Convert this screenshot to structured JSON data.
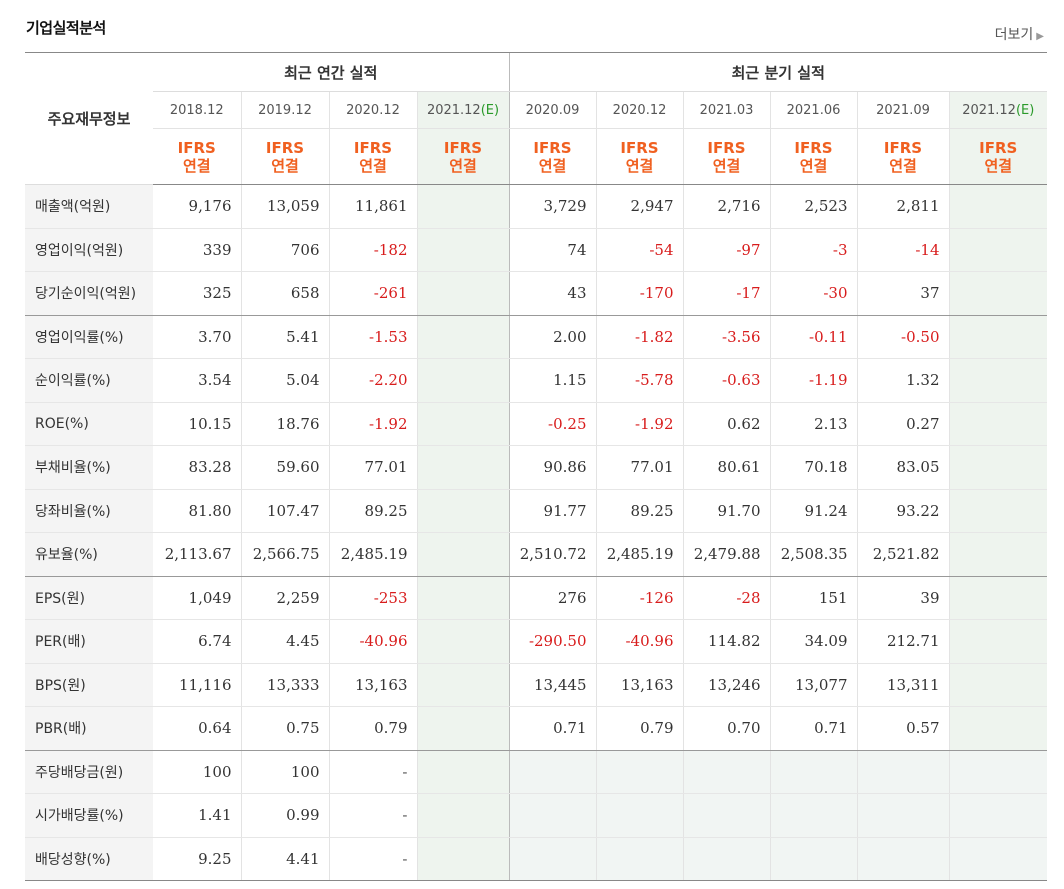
{
  "title": "기업실적분석",
  "more_label": "더보기",
  "header": {
    "corner_label": "주요재무정보",
    "annual_label": "최근 연간 실적",
    "quarter_label": "최근 분기 실적",
    "annual_periods": [
      "2018.12",
      "2019.12",
      "2020.12",
      "2021.12"
    ],
    "annual_estimate_suffix": "(E)",
    "quarter_periods": [
      "2020.09",
      "2020.12",
      "2021.03",
      "2021.06",
      "2021.09",
      "2021.12"
    ],
    "quarter_estimate_suffix": "(E)",
    "ifrs_line1": "IFRS",
    "ifrs_line2": "연결"
  },
  "rows": [
    {
      "label": "매출액(억원)",
      "annual": [
        "9,176",
        "13,059",
        "11,861",
        ""
      ],
      "quarter": [
        "3,729",
        "2,947",
        "2,716",
        "2,523",
        "2,811",
        ""
      ]
    },
    {
      "label": "영업이익(억원)",
      "annual": [
        "339",
        "706",
        "-182",
        ""
      ],
      "quarter": [
        "74",
        "-54",
        "-97",
        "-3",
        "-14",
        ""
      ]
    },
    {
      "label": "당기순이익(억원)",
      "annual": [
        "325",
        "658",
        "-261",
        ""
      ],
      "quarter": [
        "43",
        "-170",
        "-17",
        "-30",
        "37",
        ""
      ]
    },
    {
      "label": "영업이익률(%)",
      "annual": [
        "3.70",
        "5.41",
        "-1.53",
        ""
      ],
      "quarter": [
        "2.00",
        "-1.82",
        "-3.56",
        "-0.11",
        "-0.50",
        ""
      ]
    },
    {
      "label": "순이익률(%)",
      "annual": [
        "3.54",
        "5.04",
        "-2.20",
        ""
      ],
      "quarter": [
        "1.15",
        "-5.78",
        "-0.63",
        "-1.19",
        "1.32",
        ""
      ]
    },
    {
      "label": "ROE(%)",
      "annual": [
        "10.15",
        "18.76",
        "-1.92",
        ""
      ],
      "quarter": [
        "-0.25",
        "-1.92",
        "0.62",
        "2.13",
        "0.27",
        ""
      ]
    },
    {
      "label": "부채비율(%)",
      "annual": [
        "83.28",
        "59.60",
        "77.01",
        ""
      ],
      "quarter": [
        "90.86",
        "77.01",
        "80.61",
        "70.18",
        "83.05",
        ""
      ]
    },
    {
      "label": "당좌비율(%)",
      "annual": [
        "81.80",
        "107.47",
        "89.25",
        ""
      ],
      "quarter": [
        "91.77",
        "89.25",
        "91.70",
        "91.24",
        "93.22",
        ""
      ]
    },
    {
      "label": "유보율(%)",
      "annual": [
        "2,113.67",
        "2,566.75",
        "2,485.19",
        ""
      ],
      "quarter": [
        "2,510.72",
        "2,485.19",
        "2,479.88",
        "2,508.35",
        "2,521.82",
        ""
      ]
    },
    {
      "label": "EPS(원)",
      "annual": [
        "1,049",
        "2,259",
        "-253",
        ""
      ],
      "quarter": [
        "276",
        "-126",
        "-28",
        "151",
        "39",
        ""
      ]
    },
    {
      "label": "PER(배)",
      "annual": [
        "6.74",
        "4.45",
        "-40.96",
        ""
      ],
      "quarter": [
        "-290.50",
        "-40.96",
        "114.82",
        "34.09",
        "212.71",
        ""
      ]
    },
    {
      "label": "BPS(원)",
      "annual": [
        "11,116",
        "13,333",
        "13,163",
        ""
      ],
      "quarter": [
        "13,445",
        "13,163",
        "13,246",
        "13,077",
        "13,311",
        ""
      ]
    },
    {
      "label": "PBR(배)",
      "annual": [
        "0.64",
        "0.75",
        "0.79",
        ""
      ],
      "quarter": [
        "0.71",
        "0.79",
        "0.70",
        "0.71",
        "0.57",
        ""
      ]
    },
    {
      "label": "주당배당금(원)",
      "annual": [
        "100",
        "100",
        "-",
        ""
      ],
      "quarter": [
        "",
        "",
        "",
        "",
        "",
        ""
      ]
    },
    {
      "label": "시가배당률(%)",
      "annual": [
        "1.41",
        "0.99",
        "-",
        ""
      ],
      "quarter": [
        "",
        "",
        "",
        "",
        "",
        ""
      ]
    },
    {
      "label": "배당성향(%)",
      "annual": [
        "9.25",
        "4.41",
        "-",
        ""
      ],
      "quarter": [
        "",
        "",
        "",
        "",
        "",
        ""
      ]
    }
  ],
  "colors": {
    "negative": "#d81c1c",
    "ifrs": "#f06020",
    "estimate_bg": "#eef4ee",
    "estimate_mark": "#2a9a2a"
  }
}
